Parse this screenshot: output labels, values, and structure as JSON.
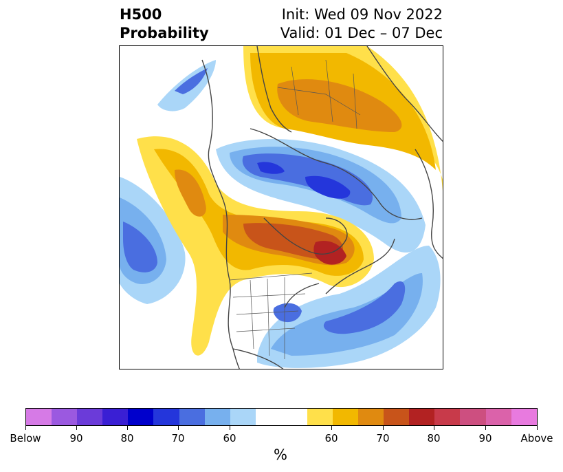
{
  "title": {
    "left_line1": "H500",
    "left_line2": "Probability",
    "right_line1": "Init: Wed 09 Nov 2022",
    "right_line2": "Valid: 01 Dec – 07 Dec"
  },
  "colorbar": {
    "label": "%",
    "colors": [
      "#d67ae6",
      "#9b59e0",
      "#6b3bd9",
      "#3a1fd4",
      "#0000cc",
      "#2436db",
      "#4a6ee0",
      "#77b0ee",
      "#aad6f8",
      "#ffffff",
      "#ffe04a",
      "#f2b800",
      "#e08a10",
      "#c8541a",
      "#b22222",
      "#c83a4a",
      "#cd4f80",
      "#db62aa",
      "#e87adf"
    ],
    "tick_labels": [
      "Below",
      "90",
      "80",
      "70",
      "60",
      "60",
      "70",
      "80",
      "90",
      "Above"
    ]
  }
}
